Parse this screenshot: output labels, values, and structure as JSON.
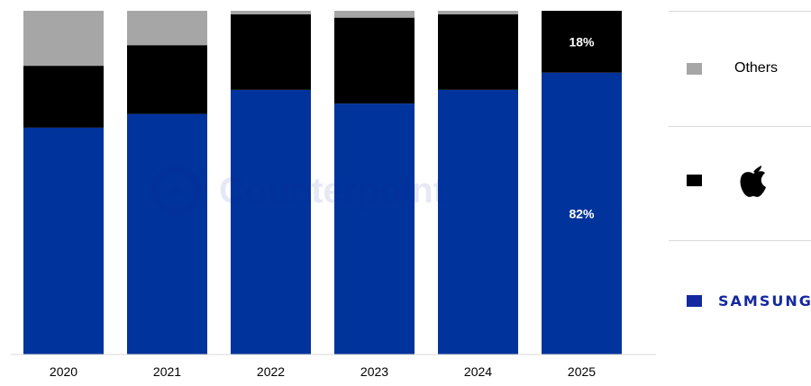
{
  "chart_data": {
    "type": "bar",
    "stacked": true,
    "normalized_percent": true,
    "categories": [
      "2020",
      "2021",
      "2022",
      "2023",
      "2024",
      "2025"
    ],
    "series": [
      {
        "key": "samsung",
        "values": [
          66,
          70,
          77,
          73,
          77,
          82
        ],
        "color": "#00339c"
      },
      {
        "key": "apple",
        "values": [
          18,
          20,
          22,
          25,
          22,
          18
        ],
        "color": "#000000"
      },
      {
        "name": "Others",
        "values": [
          16,
          10,
          1,
          2,
          1,
          0
        ],
        "color": "#a6a6a6"
      }
    ],
    "data_labels": {
      "2025": {
        "samsung": "82%",
        "apple": "18%"
      }
    },
    "ylim": [
      0,
      100
    ],
    "grid": false,
    "legend_position": "right"
  },
  "legend": {
    "others_label": "Others",
    "apple_icon": "apple-logo-icon",
    "samsung_label": "SAMSUNG"
  },
  "watermark": {
    "text": "Counterpoint",
    "icon": "counterpoint-logo-icon"
  }
}
